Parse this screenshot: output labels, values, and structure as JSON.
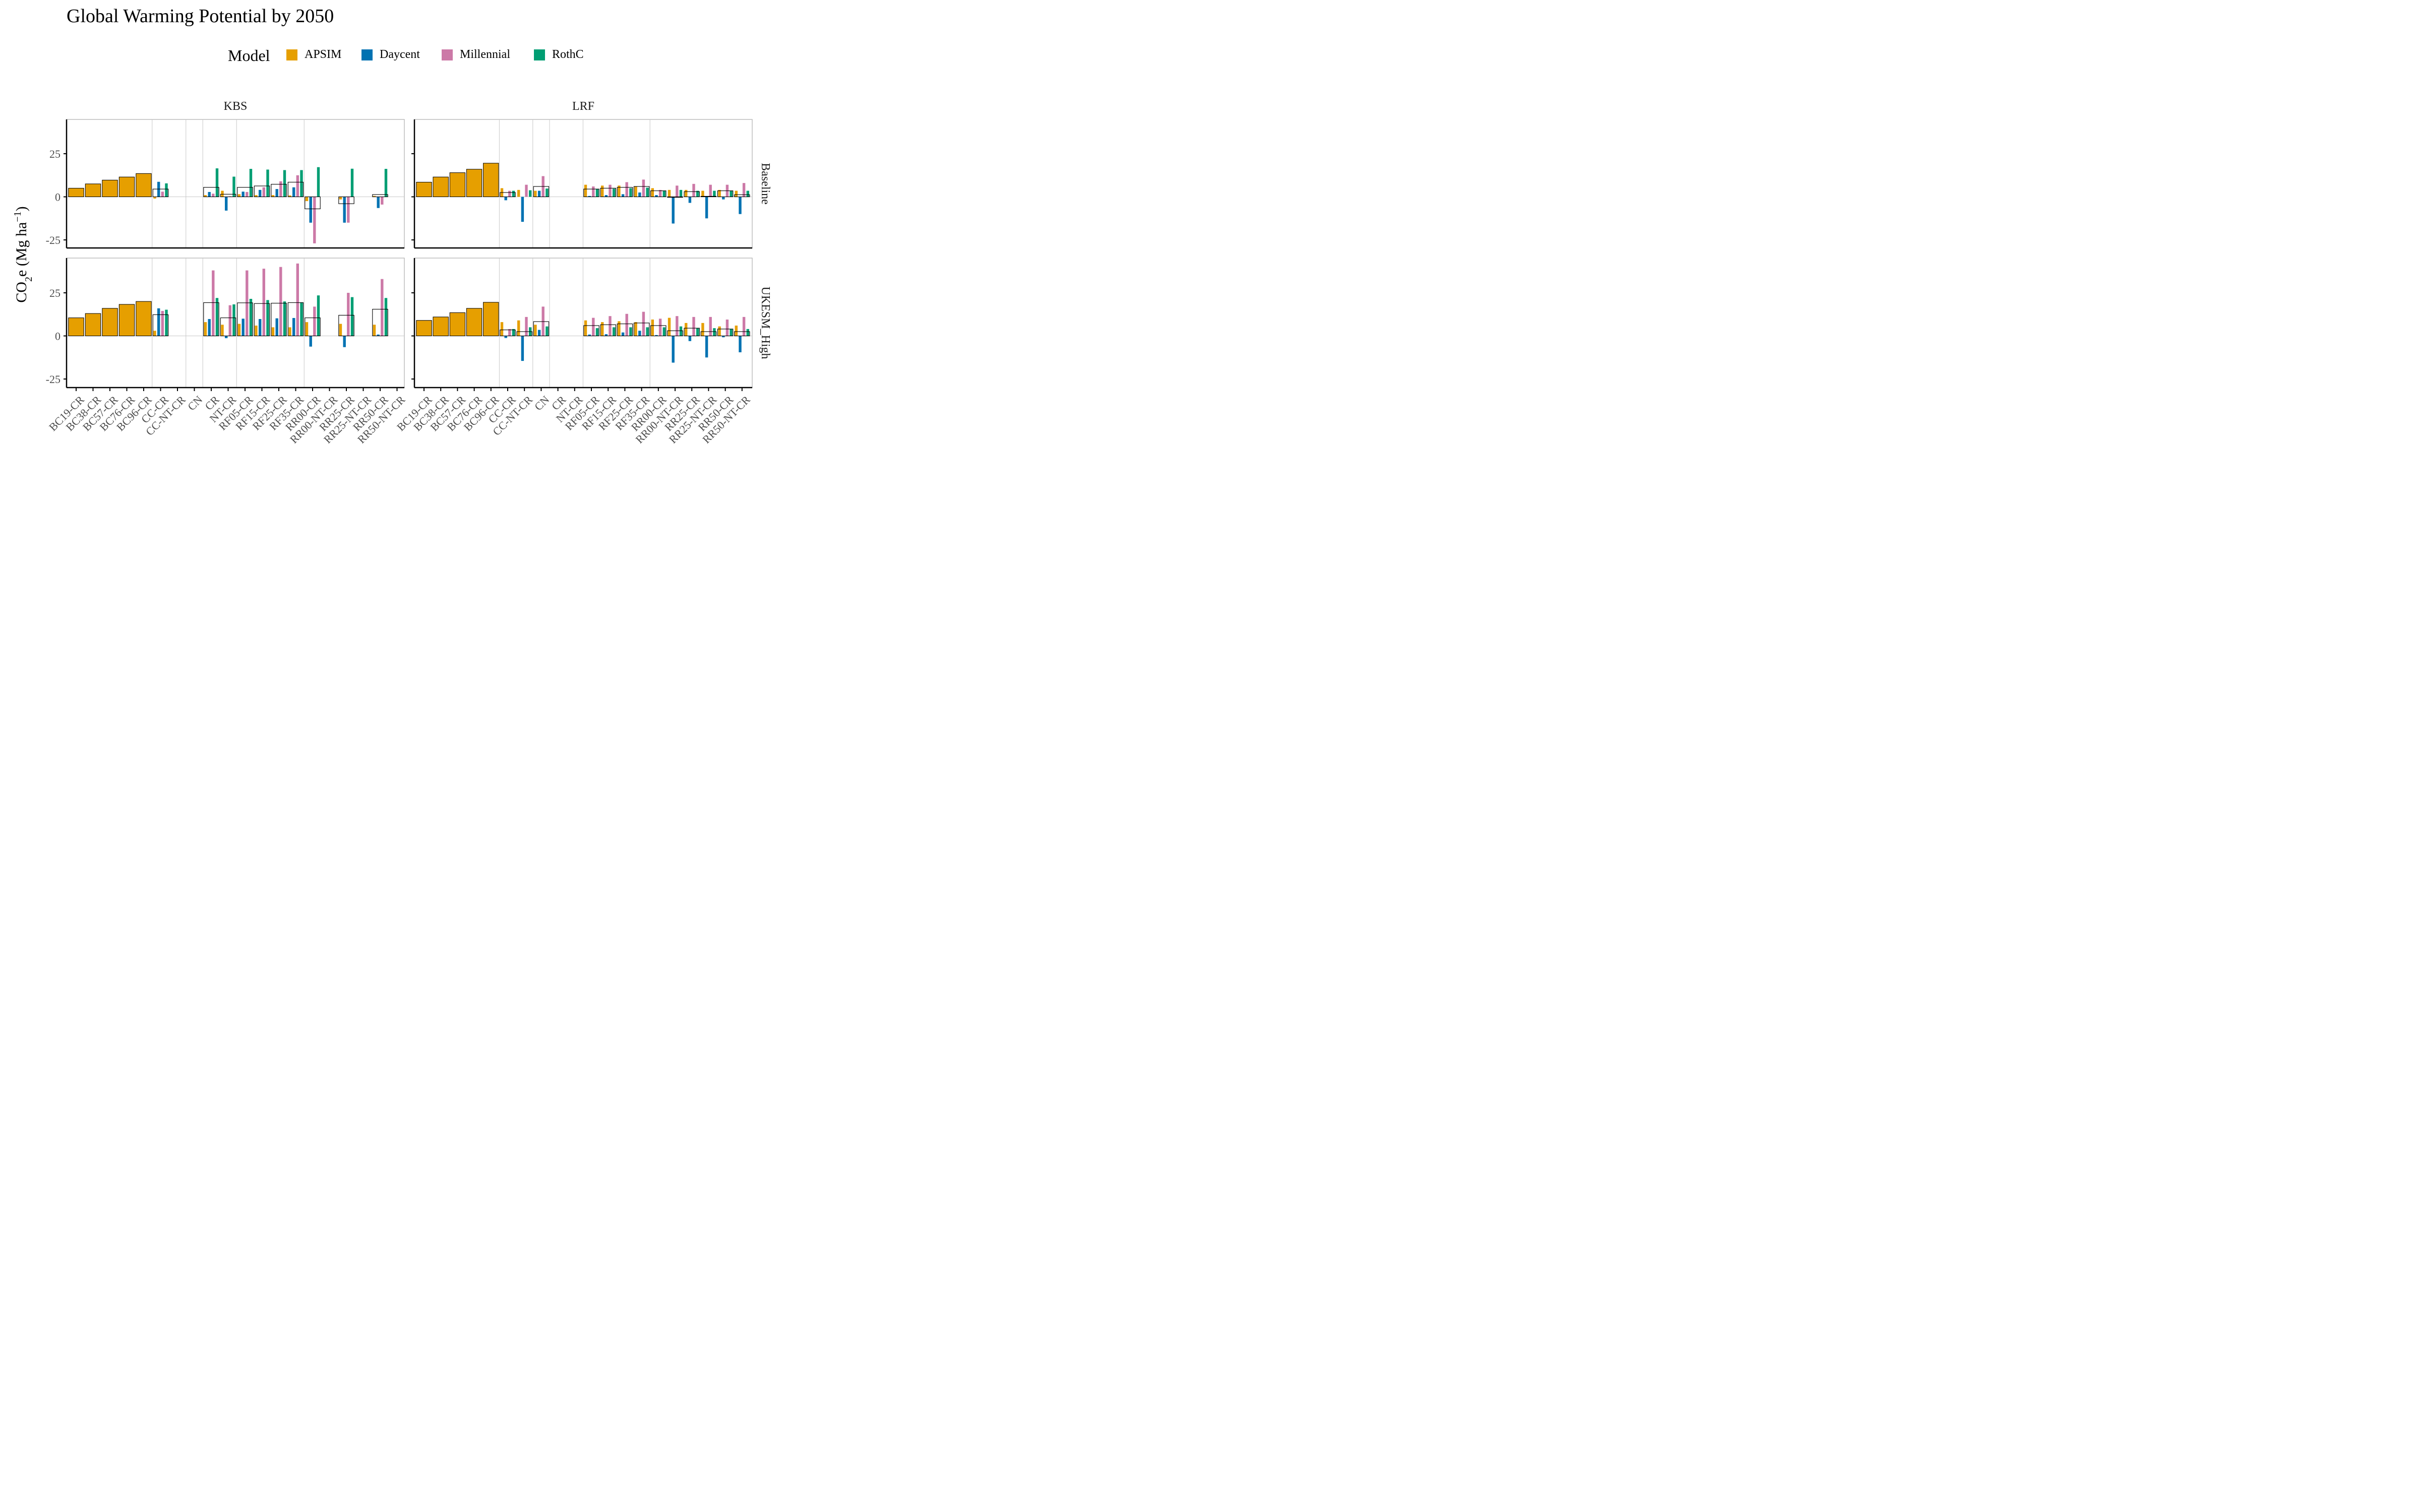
{
  "chart_data": {
    "type": "bar",
    "title": "Global Warming Potential by 2050",
    "ylabel_main": "CO",
    "ylabel_sub": "2",
    "ylabel_rest": "e (Mg ha",
    "ylabel_sup": "−1",
    "ylabel_end": ")",
    "legend_title": "Model",
    "legend_position": "top",
    "grid": true,
    "ylim": [
      -30,
      45
    ],
    "yticks": [
      -25,
      0,
      25
    ],
    "series": [
      {
        "name": "APSIM",
        "color": "#E69F00"
      },
      {
        "name": "Daycent",
        "color": "#0072B2"
      },
      {
        "name": "Millennial",
        "color": "#CC79A7"
      },
      {
        "name": "RothC",
        "color": "#009E73"
      }
    ],
    "columns": [
      {
        "site": "KBS",
        "categories": [
          "BC19-CR",
          "BC38-CR",
          "BC57-CR",
          "BC76-CR",
          "BC96-CR",
          "CC-CR",
          "CC-NT-CR",
          "CN",
          "CR",
          "NT-CR",
          "RF05-CR",
          "RF15-CR",
          "RF25-CR",
          "RF35-CR",
          "RR00-CR",
          "RR00-NT-CR",
          "RR25-CR",
          "RR25-NT-CR",
          "RR50-CR",
          "RR50-NT-CR"
        ]
      },
      {
        "site": "LRF",
        "categories": [
          "BC19-CR",
          "BC38-CR",
          "BC57-CR",
          "BC76-CR",
          "BC96-CR",
          "CC-CR",
          "CC-NT-CR",
          "CN",
          "CR",
          "NT-CR",
          "RF05-CR",
          "RF15-CR",
          "RF25-CR",
          "RF35-CR",
          "RR00-CR",
          "RR00-NT-CR",
          "RR25-CR",
          "RR25-NT-CR",
          "RR50-CR",
          "RR50-NT-CR"
        ]
      }
    ],
    "rows": [
      "Baseline",
      "UKESM_High"
    ],
    "panels": [
      {
        "site": "KBS",
        "scenario": "Baseline",
        "data": [
          {
            "category": "BC19-CR",
            "ensemble": 5,
            "apsim": 5
          },
          {
            "category": "BC38-CR",
            "ensemble": 7.5,
            "apsim": 7.5
          },
          {
            "category": "BC57-CR",
            "ensemble": 9.7,
            "apsim": 9.7
          },
          {
            "category": "BC76-CR",
            "ensemble": 11.5,
            "apsim": 11.5
          },
          {
            "category": "BC96-CR",
            "ensemble": 13.5,
            "apsim": 13.5
          },
          {
            "category": "CC-CR",
            "ensemble": 4.5,
            "apsim": -1,
            "daycent": 8.7,
            "millennial": 3,
            "rothc": 7.8
          },
          {
            "category": "CR",
            "ensemble": 5.5,
            "apsim": 1,
            "daycent": 2.8,
            "millennial": 1.8,
            "rothc": 16.5
          },
          {
            "category": "NT-CR",
            "ensemble": 1.5,
            "apsim": 3.5,
            "daycent": -8,
            "millennial": 0.3,
            "rothc": 11.7
          },
          {
            "category": "RF05-CR",
            "ensemble": 5.5,
            "apsim": 1.5,
            "daycent": 3,
            "millennial": 2.8,
            "rothc": 16.2
          },
          {
            "category": "RF15-CR",
            "ensemble": 6.3,
            "apsim": 1,
            "daycent": 4,
            "millennial": 5.5,
            "rothc": 15.8
          },
          {
            "category": "RF25-CR",
            "ensemble": 7.3,
            "apsim": 1,
            "daycent": 4.5,
            "millennial": 9,
            "rothc": 15.5
          },
          {
            "category": "RF35-CR",
            "ensemble": 8.5,
            "apsim": 0.8,
            "daycent": 5.5,
            "millennial": 12.5,
            "rothc": 15.5
          },
          {
            "category": "RR00-CR",
            "ensemble": -7,
            "apsim": -2.5,
            "daycent": -15,
            "millennial": -27,
            "rothc": 17.2
          },
          {
            "category": "RR25-CR",
            "ensemble": -4,
            "apsim": -1.5,
            "daycent": -15,
            "millennial": -15,
            "rothc": 16.3
          },
          {
            "category": "RR50-CR",
            "ensemble": 1.3,
            "apsim": 0.5,
            "daycent": -6.5,
            "millennial": -4.5,
            "rothc": 16.2
          }
        ]
      },
      {
        "site": "LRF",
        "scenario": "Baseline",
        "data": [
          {
            "category": "BC19-CR",
            "ensemble": 8.5,
            "apsim": 8.5
          },
          {
            "category": "BC38-CR",
            "ensemble": 11.5,
            "apsim": 11.5
          },
          {
            "category": "BC57-CR",
            "ensemble": 14,
            "apsim": 14
          },
          {
            "category": "BC76-CR",
            "ensemble": 16,
            "apsim": 16
          },
          {
            "category": "BC96-CR",
            "ensemble": 19.5,
            "apsim": 19.5
          },
          {
            "category": "CC-CR",
            "ensemble": 2.5,
            "apsim": 5,
            "daycent": -2,
            "millennial": 3.5,
            "rothc": 3.5
          },
          {
            "category": "CC-NT-CR",
            "apsim": 4,
            "daycent": -14.5,
            "millennial": 7,
            "rothc": 3.8
          },
          {
            "category": "CN",
            "ensemble": 6,
            "apsim": 3.5,
            "daycent": 3.5,
            "millennial": 12,
            "rothc": 4.8
          },
          {
            "category": "RF05-CR",
            "ensemble": 4.5,
            "apsim": 7,
            "daycent": 0.5,
            "millennial": 6,
            "rothc": 4.5
          },
          {
            "category": "RF15-CR",
            "ensemble": 5,
            "apsim": 6.5,
            "daycent": 1,
            "millennial": 7,
            "rothc": 4.7
          },
          {
            "category": "RF25-CR",
            "ensemble": 5.5,
            "apsim": 6.5,
            "daycent": 1.5,
            "millennial": 8.5,
            "rothc": 5
          },
          {
            "category": "RF35-CR",
            "ensemble": 6,
            "apsim": 6,
            "daycent": 2.5,
            "millennial": 10,
            "rothc": 5.3
          },
          {
            "category": "RR00-CR",
            "ensemble": 3.5,
            "apsim": 5,
            "daycent": 1,
            "millennial": 4,
            "rothc": 3.5
          },
          {
            "category": "RR00-NT-CR",
            "ensemble": -0.3,
            "apsim": 4,
            "daycent": -15.5,
            "millennial": 6.5,
            "rothc": 4
          },
          {
            "category": "RR25-CR",
            "ensemble": 3,
            "apsim": 4,
            "daycent": -3.5,
            "millennial": 7.5,
            "rothc": 3.5
          },
          {
            "category": "RR25-NT-CR",
            "ensemble": 0.3,
            "apsim": 3.5,
            "daycent": -12.5,
            "millennial": 7,
            "rothc": 3.5
          },
          {
            "category": "RR50-CR",
            "ensemble": 3.5,
            "apsim": 4,
            "daycent": -1.5,
            "millennial": 7,
            "rothc": 3.5
          },
          {
            "category": "RR50-NT-CR",
            "ensemble": 1.2,
            "apsim": 3.5,
            "daycent": -10,
            "millennial": 8,
            "rothc": 3.5
          }
        ]
      },
      {
        "site": "KBS",
        "scenario": "UKESM_High",
        "data": [
          {
            "category": "BC19-CR",
            "ensemble": 10.5,
            "apsim": 10.5
          },
          {
            "category": "BC38-CR",
            "ensemble": 13,
            "apsim": 13
          },
          {
            "category": "BC57-CR",
            "ensemble": 16,
            "apsim": 16
          },
          {
            "category": "BC76-CR",
            "ensemble": 18.3,
            "apsim": 18.3
          },
          {
            "category": "BC96-CR",
            "ensemble": 20,
            "apsim": 20
          },
          {
            "category": "CC-CR",
            "ensemble": 12.3,
            "apsim": 3,
            "daycent": 16,
            "millennial": 14.5,
            "rothc": 15.2
          },
          {
            "category": "CR",
            "ensemble": 19.3,
            "apsim": 8,
            "daycent": 9.8,
            "millennial": 38,
            "rothc": 22
          },
          {
            "category": "NT-CR",
            "ensemble": 10.5,
            "apsim": 6.5,
            "daycent": -1.3,
            "millennial": 17.8,
            "rothc": 18.3
          },
          {
            "category": "RF05-CR",
            "ensemble": 19.2,
            "apsim": 7,
            "daycent": 10,
            "millennial": 38,
            "rothc": 21.5
          },
          {
            "category": "RF15-CR",
            "ensemble": 18.8,
            "apsim": 6,
            "daycent": 9.8,
            "millennial": 39,
            "rothc": 20.8
          },
          {
            "category": "RF25-CR",
            "ensemble": 19,
            "apsim": 5,
            "daycent": 10.2,
            "millennial": 40,
            "rothc": 20
          },
          {
            "category": "RF35-CR",
            "ensemble": 19.3,
            "apsim": 5,
            "daycent": 10.4,
            "millennial": 42,
            "rothc": 19.5
          },
          {
            "category": "RR00-CR",
            "ensemble": 10.5,
            "apsim": 8,
            "daycent": -6.2,
            "millennial": 17,
            "rothc": 23.5
          },
          {
            "category": "RR25-CR",
            "ensemble": 12,
            "apsim": 7,
            "daycent": -6.5,
            "millennial": 25,
            "rothc": 22.5
          },
          {
            "category": "RR50-CR",
            "ensemble": 15.5,
            "apsim": 6.5,
            "daycent": 0.8,
            "millennial": 33,
            "rothc": 22
          }
        ]
      },
      {
        "site": "LRF",
        "scenario": "UKESM_High",
        "data": [
          {
            "category": "BC19-CR",
            "ensemble": 9,
            "apsim": 9
          },
          {
            "category": "BC38-CR",
            "ensemble": 11,
            "apsim": 11
          },
          {
            "category": "BC57-CR",
            "ensemble": 13.5,
            "apsim": 13.5
          },
          {
            "category": "BC76-CR",
            "ensemble": 16,
            "apsim": 16
          },
          {
            "category": "BC96-CR",
            "ensemble": 19.5,
            "apsim": 19.5
          },
          {
            "category": "CC-CR",
            "ensemble": 3.5,
            "apsim": 8,
            "daycent": -1.2,
            "millennial": 4,
            "rothc": 4
          },
          {
            "category": "CC-NT-CR",
            "ensemble": 2.5,
            "apsim": 9,
            "daycent": -14.5,
            "millennial": 11,
            "rothc": 5
          },
          {
            "category": "CN",
            "ensemble": 8.3,
            "apsim": 6.5,
            "daycent": 3.5,
            "millennial": 17,
            "rothc": 5.5
          },
          {
            "category": "RF05-CR",
            "ensemble": 6,
            "apsim": 9,
            "daycent": 0.8,
            "millennial": 10.5,
            "rothc": 4.5
          },
          {
            "category": "RF15-CR",
            "ensemble": 6.5,
            "apsim": 8,
            "daycent": 1,
            "millennial": 11.5,
            "rothc": 5
          },
          {
            "category": "RF25-CR",
            "ensemble": 7,
            "apsim": 8.5,
            "daycent": 2,
            "millennial": 12.8,
            "rothc": 5
          },
          {
            "category": "RF35-CR",
            "ensemble": 7.5,
            "apsim": 8,
            "daycent": 3,
            "millennial": 14,
            "rothc": 5
          },
          {
            "category": "RR00-CR",
            "ensemble": 6,
            "apsim": 9.5,
            "daycent": 0.5,
            "millennial": 10,
            "rothc": 5
          },
          {
            "category": "RR00-NT-CR",
            "ensemble": 3,
            "apsim": 10.5,
            "daycent": -15.5,
            "millennial": 11.5,
            "rothc": 5.5
          },
          {
            "category": "RR25-CR",
            "ensemble": 4.5,
            "apsim": 7.5,
            "daycent": -3,
            "millennial": 11,
            "rothc": 4.5
          },
          {
            "category": "RR25-NT-CR",
            "ensemble": 2.5,
            "apsim": 7.5,
            "daycent": -12.5,
            "millennial": 11,
            "rothc": 4.5
          },
          {
            "category": "RR50-CR",
            "ensemble": 4,
            "apsim": 5.5,
            "daycent": -0.8,
            "millennial": 9.5,
            "rothc": 4
          },
          {
            "category": "RR50-NT-CR",
            "ensemble": 2.5,
            "apsim": 6,
            "daycent": -9.5,
            "millennial": 11,
            "rothc": 4
          }
        ]
      }
    ]
  }
}
